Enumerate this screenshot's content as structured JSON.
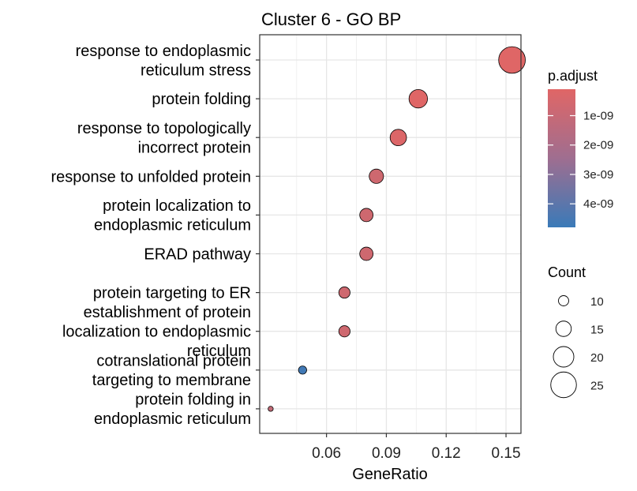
{
  "chart_data": {
    "type": "scatter",
    "title": "Cluster 6 - GO BP",
    "xlabel": "GeneRatio",
    "ylabel": "",
    "xlim": [
      0.0265,
      0.1575
    ],
    "xticks": [
      {
        "value": 0.06,
        "label": "0.06"
      },
      {
        "value": 0.09,
        "label": "0.09"
      },
      {
        "value": 0.12,
        "label": "0.12"
      },
      {
        "value": 0.15,
        "label": "0.15"
      }
    ],
    "grid": true,
    "terms": [
      {
        "lines": [
          "response to endoplasmic",
          "reticulum stress"
        ],
        "x": 0.153,
        "count": 26,
        "p_adjust": 1.2e-10
      },
      {
        "lines": [
          "protein folding"
        ],
        "x": 0.106,
        "count": 18,
        "p_adjust": 1.2e-10
      },
      {
        "lines": [
          "response to topologically",
          "incorrect protein"
        ],
        "x": 0.096,
        "count": 16,
        "p_adjust": 2e-10
      },
      {
        "lines": [
          "response to unfolded protein"
        ],
        "x": 0.085,
        "count": 14,
        "p_adjust": 6e-10
      },
      {
        "lines": [
          "protein localization to",
          "endoplasmic reticulum"
        ],
        "x": 0.08,
        "count": 13,
        "p_adjust": 6e-10
      },
      {
        "lines": [
          "ERAD pathway"
        ],
        "x": 0.08,
        "count": 13,
        "p_adjust": 6e-10
      },
      {
        "lines": [
          "protein targeting to ER"
        ],
        "x": 0.069,
        "count": 11,
        "p_adjust": 6e-10
      },
      {
        "lines": [
          "establishment of protein",
          "localization to endoplasmic",
          "reticulum"
        ],
        "x": 0.069,
        "count": 11,
        "p_adjust": 6e-10
      },
      {
        "lines": [
          "cotranslational protein",
          "targeting to membrane"
        ],
        "x": 0.048,
        "count": 8,
        "p_adjust": 4.6e-09
      },
      {
        "lines": [
          "protein folding in",
          "endoplasmic reticulum"
        ],
        "x": 0.032,
        "count": 5,
        "p_adjust": 1e-09
      }
    ],
    "color_legend": {
      "title": "p.adjust",
      "ticks": [
        {
          "value": 1e-09,
          "label": "1e-09"
        },
        {
          "value": 2e-09,
          "label": "2e-09"
        },
        {
          "value": 3e-09,
          "label": "3e-09"
        },
        {
          "value": 4e-09,
          "label": "4e-09"
        }
      ],
      "range": [
        1e-10,
        4.8e-09
      ],
      "low_color": "#e06666",
      "high_color": "#3a7ab8"
    },
    "size_legend": {
      "title": "Count",
      "entries": [
        {
          "value": 10,
          "label": "10"
        },
        {
          "value": 15,
          "label": "15"
        },
        {
          "value": 20,
          "label": "20"
        },
        {
          "value": 25,
          "label": "25"
        }
      ]
    }
  }
}
